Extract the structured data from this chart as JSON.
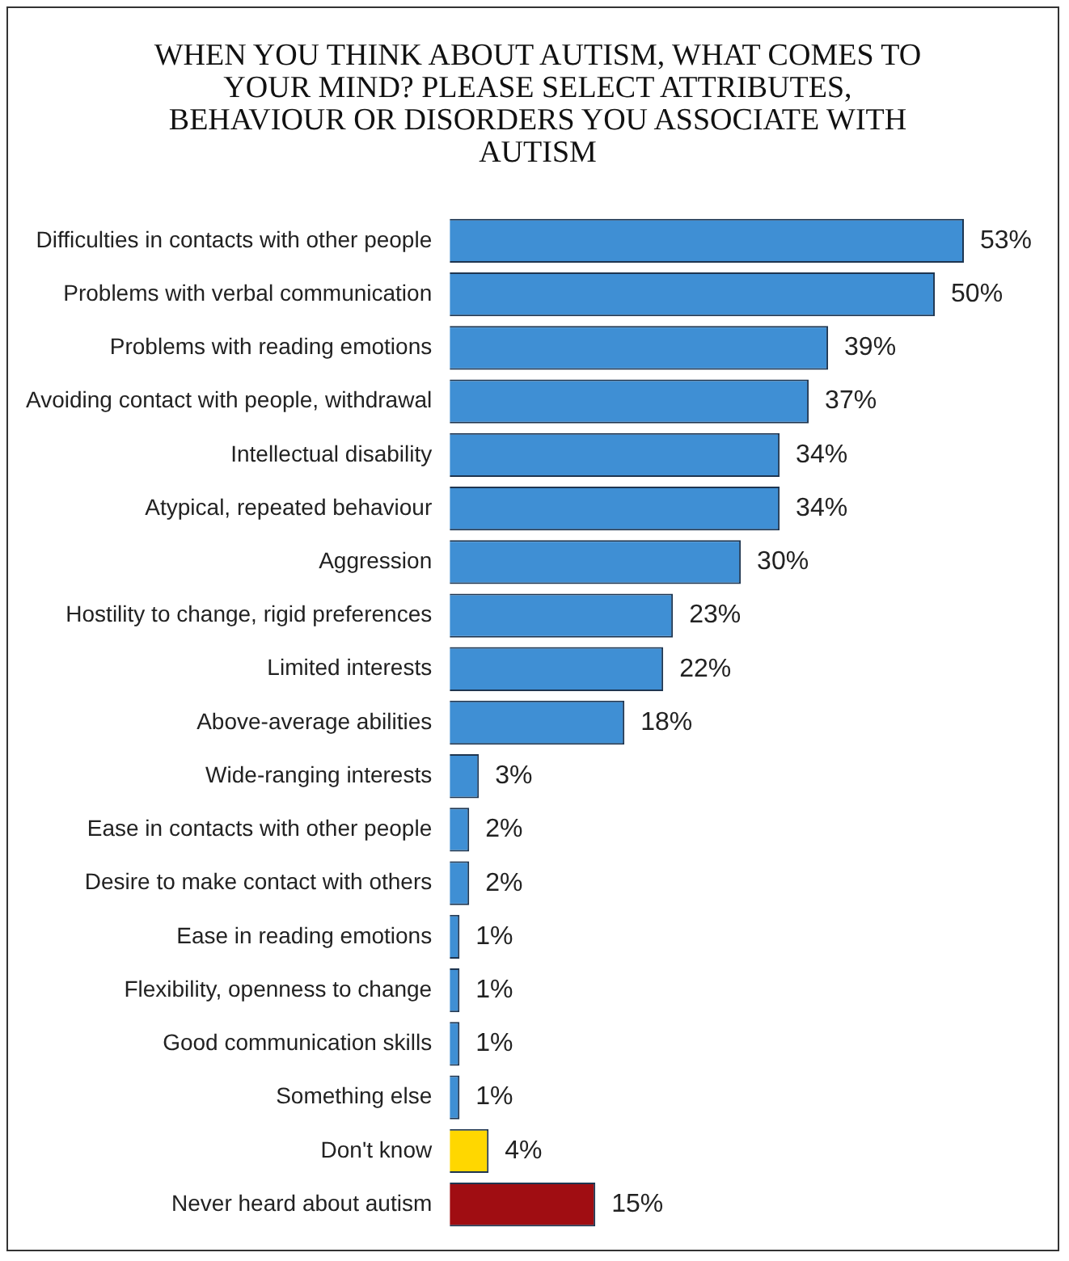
{
  "chart_data": {
    "type": "bar",
    "orientation": "horizontal",
    "title": "WHEN YOU THINK ABOUT AUTISM, WHAT COMES TO YOUR MIND? PLEASE SELECT ATTRIBUTES, BEHAVIOUR OR DISORDERS YOU ASSOCIATE WITH AUTISM",
    "categories": [
      "Difficulties in contacts with other people",
      "Problems with verbal communication",
      "Problems with reading emotions",
      "Avoiding contact with people, withdrawal",
      "Intellectual disability",
      "Atypical, repeated behaviour",
      "Aggression",
      "Hostility to change, rigid preferences",
      "Limited interests",
      "Above-average abilities",
      "Wide-ranging interests",
      "Ease in contacts with other people",
      "Desire to make contact with others",
      "Ease in reading emotions",
      "Flexibility, openness to change",
      "Good communication skills",
      "Something else",
      "Don't know",
      "Never heard about autism"
    ],
    "values": [
      53,
      50,
      39,
      37,
      34,
      34,
      30,
      23,
      22,
      18,
      3,
      2,
      2,
      1,
      1,
      1,
      1,
      4,
      15
    ],
    "value_labels": [
      "53%",
      "50%",
      "39%",
      "37%",
      "34%",
      "34%",
      "30%",
      "23%",
      "22%",
      "18%",
      "3%",
      "2%",
      "2%",
      "1%",
      "1%",
      "1%",
      "1%",
      "4%",
      "15%"
    ],
    "colors": [
      "#3f8fd4",
      "#3f8fd4",
      "#3f8fd4",
      "#3f8fd4",
      "#3f8fd4",
      "#3f8fd4",
      "#3f8fd4",
      "#3f8fd4",
      "#3f8fd4",
      "#3f8fd4",
      "#3f8fd4",
      "#3f8fd4",
      "#3f8fd4",
      "#3f8fd4",
      "#3f8fd4",
      "#3f8fd4",
      "#3f8fd4",
      "#ffd700",
      "#a00d12"
    ]
  }
}
